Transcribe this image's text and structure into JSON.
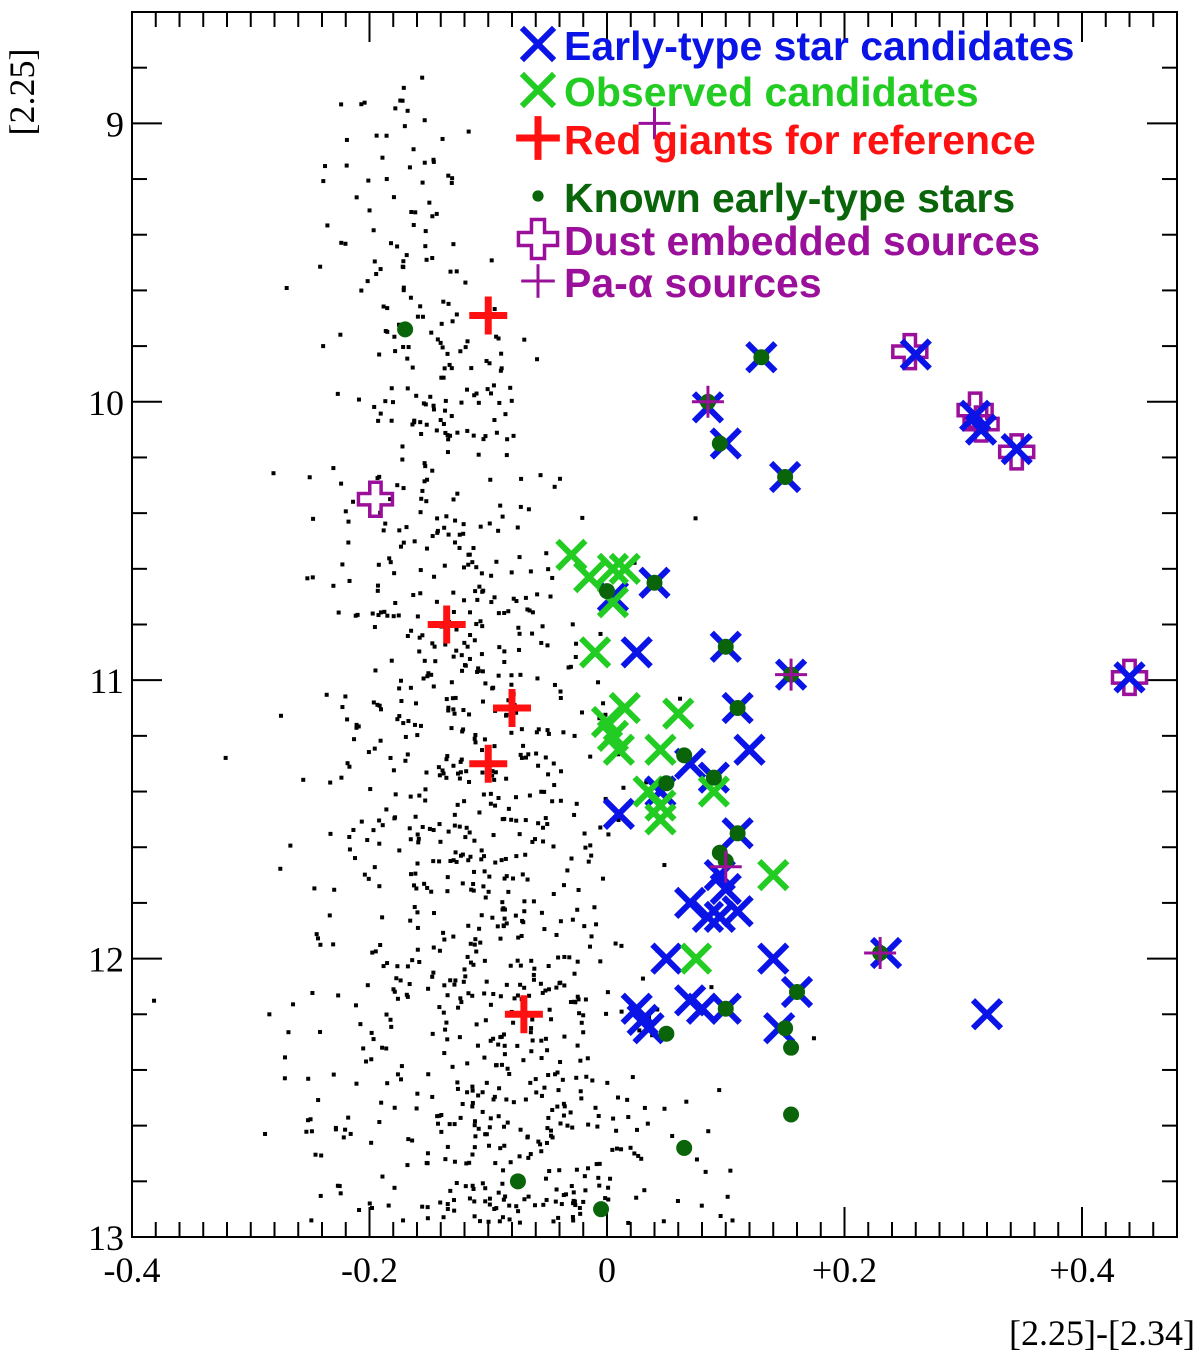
{
  "chart_data": {
    "type": "scatter",
    "title": "",
    "xlabel": "[2.25]-[2.34]",
    "ylabel": "[2.25]",
    "xlim": [
      -0.4,
      0.48
    ],
    "ylim": [
      13,
      8.6
    ],
    "y_inverted": true,
    "x_ticks": [
      {
        "value": -0.4,
        "label": "-0.4"
      },
      {
        "value": -0.2,
        "label": "-0.2"
      },
      {
        "value": 0,
        "label": "0"
      },
      {
        "value": 0.2,
        "label": "+0.2"
      },
      {
        "value": 0.4,
        "label": "+0.4"
      }
    ],
    "y_ticks": [
      {
        "value": 9,
        "label": "9"
      },
      {
        "value": 10,
        "label": "10"
      },
      {
        "value": 11,
        "label": "11"
      },
      {
        "value": 12,
        "label": "12"
      },
      {
        "value": 13,
        "label": "13"
      }
    ],
    "colors": {
      "early_type": "#0a14e6",
      "observed": "#22cc22",
      "red_giants": "#ff1111",
      "known_early": "#0a640a",
      "dust": "#9a109a",
      "pa_alpha": "#9a109a",
      "field": "#000000"
    },
    "legend": {
      "placement": "top-right",
      "entries": [
        {
          "key": "early_type",
          "label": "Early-type star candidates",
          "marker": "x-icon"
        },
        {
          "key": "observed",
          "label": "Observed candidates",
          "marker": "x-icon"
        },
        {
          "key": "red_giants",
          "label": "Red giants for reference",
          "marker": "plus-icon"
        },
        {
          "key": "known_early",
          "label": "Known early-type stars",
          "marker": "dot-icon"
        },
        {
          "key": "dust",
          "label": "Dust embedded sources",
          "marker": "open-cross-icon"
        },
        {
          "key": "pa_alpha",
          "label": "Pa-α sources",
          "marker": "thin-plus-icon"
        }
      ]
    },
    "series": [
      {
        "name": "Early-type star candidates",
        "key": "early_type",
        "points": [
          [
            0.13,
            9.84
          ],
          [
            0.26,
            9.83
          ],
          [
            0.085,
            10.02
          ],
          [
            0.1,
            10.15
          ],
          [
            0.15,
            10.27
          ],
          [
            0.31,
            10.05
          ],
          [
            0.315,
            10.1
          ],
          [
            0.345,
            10.17
          ],
          [
            0.04,
            10.65
          ],
          [
            0.005,
            10.7
          ],
          [
            0.025,
            10.9
          ],
          [
            0.1,
            10.88
          ],
          [
            0.155,
            10.98
          ],
          [
            0.44,
            10.99
          ],
          [
            0.11,
            11.1
          ],
          [
            0.12,
            11.25
          ],
          [
            0.07,
            11.3
          ],
          [
            0.09,
            11.35
          ],
          [
            0.045,
            11.4
          ],
          [
            0.11,
            11.55
          ],
          [
            0.01,
            11.48
          ],
          [
            0.07,
            11.8
          ],
          [
            0.085,
            11.85
          ],
          [
            0.1,
            11.75
          ],
          [
            0.11,
            11.83
          ],
          [
            0.095,
            11.7
          ],
          [
            0.095,
            11.85
          ],
          [
            0.05,
            12.0
          ],
          [
            0.14,
            12.0
          ],
          [
            0.07,
            12.15
          ],
          [
            0.08,
            12.18
          ],
          [
            0.025,
            12.18
          ],
          [
            0.03,
            12.22
          ],
          [
            0.035,
            12.25
          ],
          [
            0.1,
            12.18
          ],
          [
            0.145,
            12.25
          ],
          [
            0.16,
            12.12
          ],
          [
            0.235,
            11.98
          ],
          [
            0.32,
            12.2
          ]
        ]
      },
      {
        "name": "Observed candidates",
        "key": "observed",
        "points": [
          [
            -0.03,
            10.55
          ],
          [
            -0.015,
            10.63
          ],
          [
            0.005,
            10.6
          ],
          [
            0.015,
            10.6
          ],
          [
            0.005,
            10.72
          ],
          [
            -0.01,
            10.9
          ],
          [
            0.0,
            11.15
          ],
          [
            0.015,
            11.1
          ],
          [
            0.005,
            11.2
          ],
          [
            0.01,
            11.25
          ],
          [
            0.06,
            11.12
          ],
          [
            0.045,
            11.25
          ],
          [
            0.035,
            11.4
          ],
          [
            0.045,
            11.45
          ],
          [
            0.045,
            11.5
          ],
          [
            0.09,
            11.4
          ],
          [
            0.14,
            11.7
          ],
          [
            0.075,
            12.0
          ]
        ]
      },
      {
        "name": "Red giants for reference",
        "key": "red_giants",
        "points": [
          [
            -0.1,
            9.69
          ],
          [
            -0.135,
            10.8
          ],
          [
            -0.08,
            11.1
          ],
          [
            -0.1,
            11.3
          ],
          [
            -0.07,
            12.2
          ]
        ]
      },
      {
        "name": "Known early-type stars",
        "key": "known_early",
        "points": [
          [
            -0.17,
            9.74
          ],
          [
            0.13,
            9.84
          ],
          [
            0.085,
            10.0
          ],
          [
            0.095,
            10.15
          ],
          [
            0.15,
            10.27
          ],
          [
            0.04,
            10.65
          ],
          [
            0.0,
            10.68
          ],
          [
            0.1,
            10.88
          ],
          [
            0.155,
            10.98
          ],
          [
            0.11,
            11.1
          ],
          [
            0.065,
            11.27
          ],
          [
            0.09,
            11.35
          ],
          [
            0.05,
            11.37
          ],
          [
            0.11,
            11.55
          ],
          [
            0.095,
            11.62
          ],
          [
            0.1,
            11.65
          ],
          [
            0.23,
            11.98
          ],
          [
            0.1,
            12.18
          ],
          [
            0.16,
            12.12
          ],
          [
            0.15,
            12.25
          ],
          [
            0.05,
            12.27
          ],
          [
            0.155,
            12.32
          ],
          [
            0.155,
            12.56
          ],
          [
            0.065,
            12.68
          ],
          [
            -0.075,
            12.8
          ],
          [
            -0.005,
            12.9
          ]
        ]
      },
      {
        "name": "Dust embedded sources",
        "key": "dust",
        "points": [
          [
            0.255,
            9.82
          ],
          [
            0.31,
            10.03
          ],
          [
            0.315,
            10.08
          ],
          [
            0.345,
            10.18
          ],
          [
            -0.195,
            10.35
          ],
          [
            0.44,
            10.99
          ]
        ]
      },
      {
        "name": "Pa-α sources",
        "key": "pa_alpha",
        "points": [
          [
            0.04,
            9.0
          ],
          [
            0.085,
            10.0
          ],
          [
            0.155,
            10.98
          ],
          [
            0.1,
            11.67
          ],
          [
            0.23,
            11.98
          ]
        ]
      }
    ]
  }
}
